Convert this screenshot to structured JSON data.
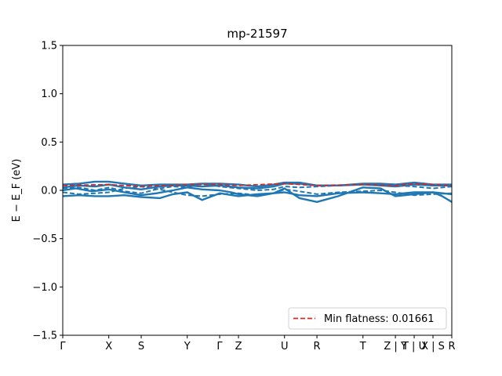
{
  "chart_data": {
    "type": "line",
    "title": "mp-21597",
    "xlabel": "",
    "ylabel": "E − E_F (eV)",
    "ylim": [
      -1.5,
      1.5
    ],
    "xlim": [
      0,
      12.0
    ],
    "yticks": [
      1.5,
      1.0,
      0.5,
      0.0,
      -0.5,
      -1.0,
      -1.5
    ],
    "ytick_labels": [
      "1.5",
      "1.0",
      "0.5",
      "0.0",
      "−0.5",
      "−1.0",
      "−1.5"
    ],
    "kpath_ticks": [
      {
        "x": 0.0,
        "label": "Γ"
      },
      {
        "x": 1.42,
        "label": "X"
      },
      {
        "x": 2.42,
        "label": "S"
      },
      {
        "x": 3.84,
        "label": "Y"
      },
      {
        "x": 4.84,
        "label": "Γ"
      },
      {
        "x": 5.42,
        "label": "Z"
      },
      {
        "x": 6.84,
        "label": "U"
      },
      {
        "x": 7.84,
        "label": "R"
      },
      {
        "x": 9.26,
        "label": "T"
      },
      {
        "x": 10.26,
        "label": "Z | Y"
      },
      {
        "x": 10.84,
        "label": "T | U"
      },
      {
        "x": 11.42,
        "label": "X | S"
      },
      {
        "x": 12.0,
        "label": "R"
      }
    ],
    "colors": {
      "bands": "#1f77b4",
      "flat": "#d62728"
    },
    "legend": {
      "entries": [
        "Min flatness: 0.01661"
      ],
      "placement": "lower-right"
    },
    "series": [
      {
        "style": "solid",
        "x": [
          0,
          0.5,
          1.0,
          1.42,
          1.9,
          2.42,
          3.0,
          3.4,
          3.84,
          4.3,
          4.84,
          5.42,
          6.0,
          6.5,
          6.84,
          7.3,
          7.84,
          8.5,
          9.26,
          9.8,
          10.26,
          10.84,
          11.42,
          12.0
        ],
        "y": [
          0.06,
          0.07,
          0.09,
          0.09,
          0.07,
          0.05,
          0.06,
          0.06,
          0.06,
          0.07,
          0.07,
          0.06,
          0.04,
          0.06,
          0.08,
          0.08,
          0.05,
          0.05,
          0.07,
          0.07,
          0.06,
          0.08,
          0.06,
          0.06
        ]
      },
      {
        "style": "solid",
        "x": [
          0,
          0.5,
          1.0,
          1.42,
          1.9,
          2.42,
          3.0,
          3.4,
          3.84,
          4.3,
          4.84,
          5.42,
          6.0,
          6.5,
          6.84,
          7.3,
          7.84,
          8.5,
          9.26,
          9.8,
          10.26,
          10.84,
          11.42,
          12.0
        ],
        "y": [
          0.03,
          0.05,
          0.04,
          0.06,
          0.03,
          0.01,
          0.04,
          0.05,
          0.05,
          0.04,
          0.05,
          0.03,
          0.02,
          0.04,
          0.07,
          0.07,
          0.05,
          0.05,
          0.06,
          0.05,
          0.04,
          0.06,
          0.05,
          0.05
        ]
      },
      {
        "style": "solid",
        "x": [
          0,
          0.4,
          0.9,
          1.42,
          1.9,
          2.42,
          2.9,
          3.4,
          3.84,
          4.3,
          4.84,
          5.2,
          5.42,
          6.0,
          6.5,
          6.84,
          7.3,
          7.84,
          8.5,
          9.26,
          9.8,
          10.26,
          10.84,
          11.42,
          11.7,
          12.0
        ],
        "y": [
          0.0,
          0.02,
          -0.01,
          0.01,
          -0.02,
          -0.05,
          -0.03,
          0.0,
          0.03,
          0.01,
          0.0,
          -0.02,
          -0.04,
          -0.06,
          -0.03,
          0.02,
          -0.08,
          -0.12,
          -0.06,
          0.03,
          0.02,
          -0.06,
          -0.04,
          -0.02,
          -0.06,
          -0.12
        ]
      },
      {
        "style": "solid",
        "x": [
          0,
          0.5,
          1.0,
          1.42,
          1.9,
          2.42,
          3.0,
          3.4,
          3.84,
          4.3,
          4.84,
          5.42,
          6.0,
          6.5,
          6.84,
          7.3,
          7.84,
          8.5,
          9.26,
          9.8,
          10.26,
          10.84,
          11.42,
          12.0
        ],
        "y": [
          -0.06,
          -0.05,
          -0.06,
          -0.06,
          -0.05,
          -0.07,
          -0.08,
          -0.04,
          -0.02,
          -0.1,
          -0.03,
          -0.06,
          -0.04,
          -0.03,
          -0.02,
          -0.05,
          -0.06,
          -0.03,
          -0.02,
          -0.03,
          -0.04,
          -0.02,
          -0.02,
          -0.04
        ]
      },
      {
        "style": "dashed",
        "x": [
          0,
          0.5,
          1.0,
          1.42,
          1.9,
          2.42,
          3.0,
          3.4,
          3.84,
          4.3,
          4.84,
          5.42,
          6.0,
          6.5,
          6.84,
          7.3,
          7.84,
          8.5,
          9.26,
          9.8,
          10.26,
          10.84,
          11.42,
          12.0
        ],
        "y": [
          0.02,
          0.03,
          0.0,
          0.03,
          -0.01,
          -0.03,
          0.02,
          0.04,
          0.03,
          0.07,
          0.04,
          0.02,
          0.0,
          0.01,
          0.04,
          0.03,
          0.04,
          0.05,
          0.06,
          0.06,
          0.05,
          0.04,
          0.02,
          0.04
        ]
      },
      {
        "style": "dashed",
        "x": [
          0,
          0.5,
          1.0,
          1.42,
          1.9,
          2.42,
          3.0,
          3.4,
          3.84,
          4.3,
          4.84,
          5.42,
          6.0,
          6.5,
          6.84,
          7.3,
          7.84,
          8.5,
          9.26,
          9.8,
          10.26,
          10.84,
          11.42,
          12.0
        ],
        "y": [
          -0.02,
          -0.04,
          -0.03,
          -0.02,
          0.02,
          0.04,
          0.01,
          -0.02,
          -0.05,
          -0.06,
          -0.04,
          -0.03,
          -0.05,
          -0.03,
          0.01,
          -0.01,
          -0.04,
          -0.02,
          -0.01,
          0.0,
          -0.02,
          -0.05,
          -0.04,
          -0.03
        ]
      },
      {
        "style": "flat",
        "x": [
          0,
          1.42,
          2.42,
          3.84,
          4.84,
          5.42,
          6.84,
          7.84,
          9.26,
          10.26,
          10.84,
          11.42,
          12.0
        ],
        "y": [
          0.05,
          0.06,
          0.04,
          0.06,
          0.06,
          0.05,
          0.07,
          0.05,
          0.06,
          0.05,
          0.07,
          0.06,
          0.05
        ]
      }
    ]
  }
}
